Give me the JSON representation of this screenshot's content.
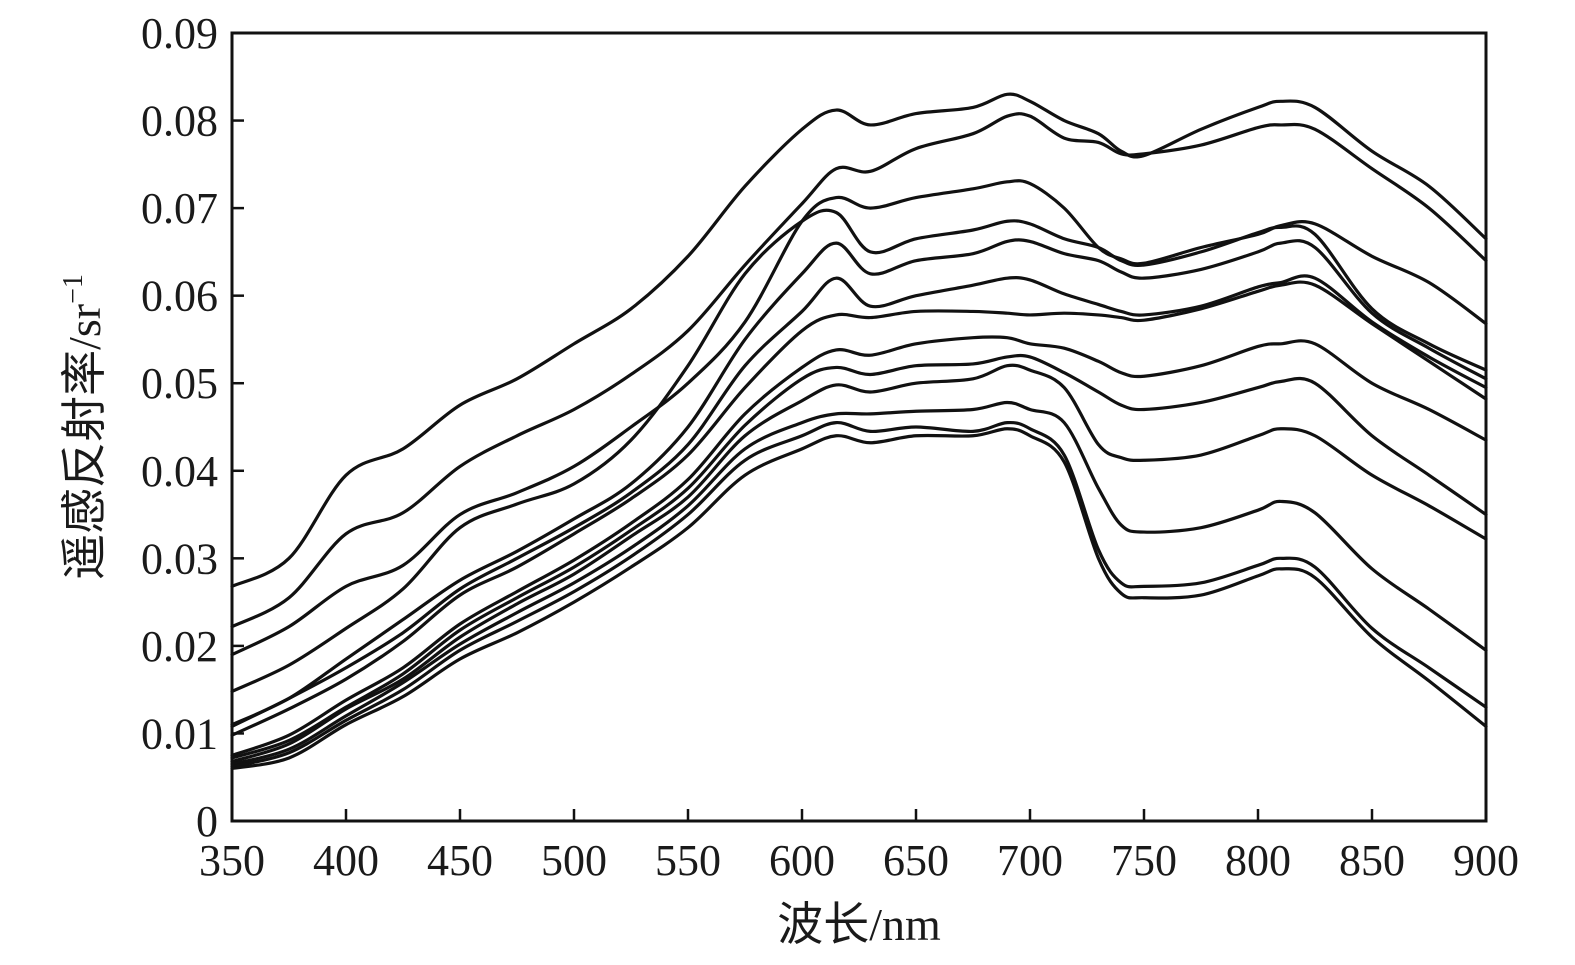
{
  "chart_data": {
    "type": "line",
    "title": "",
    "xlabel": "波长/nm",
    "ylabel": "遥感反射率/sr⁻¹",
    "ylabel_main": "遥感反射率/sr",
    "ylabel_sup": "−1",
    "xlim": [
      350,
      900
    ],
    "ylim": [
      0,
      0.09
    ],
    "xticks": [
      350,
      400,
      450,
      500,
      550,
      600,
      650,
      700,
      750,
      800,
      850,
      900
    ],
    "xtick_labels": [
      "350",
      "400",
      "450",
      "500",
      "550",
      "600",
      "650",
      "700",
      "750",
      "800",
      "850",
      "900"
    ],
    "yticks": [
      0,
      0.01,
      0.02,
      0.03,
      0.04,
      0.05,
      0.06,
      0.07,
      0.08,
      0.09
    ],
    "ytick_labels": [
      "0",
      "0.01",
      "0.02",
      "0.03",
      "0.04",
      "0.05",
      "0.06",
      "0.07",
      "0.08",
      "0.09"
    ],
    "grid": false,
    "legend": "none",
    "line_color": "#111111",
    "x": [
      350,
      375,
      400,
      425,
      450,
      475,
      500,
      525,
      550,
      575,
      600,
      615,
      630,
      650,
      675,
      690,
      700,
      715,
      730,
      740,
      750,
      775,
      800,
      810,
      825,
      850,
      875,
      900
    ],
    "series": [
      {
        "values": [
          0.0268,
          0.03,
          0.0395,
          0.0425,
          0.0475,
          0.0505,
          0.0545,
          0.0585,
          0.0645,
          0.0725,
          0.079,
          0.0812,
          0.0795,
          0.0808,
          0.0815,
          0.083,
          0.0822,
          0.08,
          0.0785,
          0.0765,
          0.076,
          0.079,
          0.0815,
          0.0822,
          0.0815,
          0.0765,
          0.0725,
          0.0665
        ]
      },
      {
        "values": [
          0.0222,
          0.0255,
          0.0328,
          0.0352,
          0.0405,
          0.044,
          0.047,
          0.051,
          0.056,
          0.0635,
          0.0705,
          0.0745,
          0.0742,
          0.0768,
          0.0785,
          0.0805,
          0.0805,
          0.078,
          0.0775,
          0.0762,
          0.0762,
          0.0772,
          0.0792,
          0.0795,
          0.079,
          0.0745,
          0.07,
          0.064
        ]
      },
      {
        "values": [
          0.019,
          0.0222,
          0.0268,
          0.0292,
          0.035,
          0.0375,
          0.0405,
          0.045,
          0.05,
          0.057,
          0.0685,
          0.0712,
          0.07,
          0.0712,
          0.0722,
          0.073,
          0.0728,
          0.07,
          0.0655,
          0.0642,
          0.0637,
          0.0655,
          0.067,
          0.068,
          0.0682,
          0.0645,
          0.0615,
          0.0568
        ]
      },
      {
        "values": [
          0.0148,
          0.0178,
          0.022,
          0.0265,
          0.0335,
          0.0362,
          0.0385,
          0.0435,
          0.052,
          0.0625,
          0.0685,
          0.0695,
          0.065,
          0.0665,
          0.0675,
          0.0685,
          0.0682,
          0.0665,
          0.0655,
          0.064,
          0.0635,
          0.065,
          0.0672,
          0.0678,
          0.067,
          0.0585,
          0.0545,
          0.0515
        ]
      },
      {
        "values": [
          0.011,
          0.014,
          0.0185,
          0.023,
          0.0275,
          0.0308,
          0.0345,
          0.0385,
          0.045,
          0.055,
          0.0625,
          0.066,
          0.0625,
          0.064,
          0.0648,
          0.0662,
          0.0662,
          0.0648,
          0.064,
          0.0627,
          0.062,
          0.063,
          0.065,
          0.066,
          0.0655,
          0.058,
          0.054,
          0.0505
        ]
      },
      {
        "values": [
          0.0108,
          0.014,
          0.0175,
          0.0215,
          0.0265,
          0.03,
          0.0335,
          0.0375,
          0.043,
          0.052,
          0.0582,
          0.062,
          0.0588,
          0.06,
          0.0612,
          0.062,
          0.0618,
          0.0602,
          0.059,
          0.0582,
          0.0578,
          0.0588,
          0.061,
          0.0615,
          0.062,
          0.057,
          0.053,
          0.0495
        ]
      },
      {
        "values": [
          0.0098,
          0.0128,
          0.0162,
          0.0205,
          0.0258,
          0.029,
          0.0328,
          0.0368,
          0.0418,
          0.0495,
          0.056,
          0.0578,
          0.0575,
          0.0582,
          0.0582,
          0.058,
          0.0578,
          0.058,
          0.0578,
          0.0575,
          0.0572,
          0.0585,
          0.0605,
          0.0612,
          0.0612,
          0.0568,
          0.0525,
          0.0482
        ]
      },
      {
        "values": [
          0.0075,
          0.0098,
          0.0138,
          0.0175,
          0.0225,
          0.0262,
          0.0298,
          0.034,
          0.039,
          0.0465,
          0.0518,
          0.0538,
          0.0532,
          0.0545,
          0.0552,
          0.0552,
          0.0545,
          0.054,
          0.0525,
          0.0512,
          0.0508,
          0.052,
          0.0542,
          0.0545,
          0.0545,
          0.05,
          0.047,
          0.0435
        ]
      },
      {
        "values": [
          0.0072,
          0.0092,
          0.013,
          0.0168,
          0.0218,
          0.0255,
          0.029,
          0.0332,
          0.038,
          0.0452,
          0.0505,
          0.0518,
          0.051,
          0.052,
          0.0522,
          0.053,
          0.053,
          0.0512,
          0.049,
          0.0475,
          0.047,
          0.0478,
          0.0495,
          0.0502,
          0.05,
          0.044,
          0.0395,
          0.035
        ]
      },
      {
        "values": [
          0.0068,
          0.0088,
          0.0128,
          0.0162,
          0.021,
          0.0248,
          0.0282,
          0.0325,
          0.037,
          0.044,
          0.048,
          0.0498,
          0.049,
          0.05,
          0.0505,
          0.052,
          0.0515,
          0.0495,
          0.043,
          0.0415,
          0.0412,
          0.0418,
          0.044,
          0.0448,
          0.044,
          0.0395,
          0.036,
          0.0322
        ]
      },
      {
        "values": [
          0.0065,
          0.0082,
          0.012,
          0.0158,
          0.0202,
          0.0238,
          0.0272,
          0.0312,
          0.036,
          0.0425,
          0.0455,
          0.0465,
          0.0465,
          0.0468,
          0.047,
          0.0478,
          0.047,
          0.0455,
          0.038,
          0.0338,
          0.033,
          0.0335,
          0.0355,
          0.0365,
          0.0352,
          0.0288,
          0.0242,
          0.0195
        ]
      },
      {
        "values": [
          0.0062,
          0.0078,
          0.0115,
          0.015,
          0.0195,
          0.0228,
          0.0262,
          0.0302,
          0.035,
          0.0412,
          0.044,
          0.0455,
          0.0445,
          0.045,
          0.0445,
          0.0455,
          0.0448,
          0.0418,
          0.031,
          0.0272,
          0.0268,
          0.0272,
          0.0292,
          0.03,
          0.029,
          0.022,
          0.0175,
          0.013
        ]
      },
      {
        "values": [
          0.006,
          0.0072,
          0.011,
          0.0142,
          0.0185,
          0.0215,
          0.025,
          0.029,
          0.0335,
          0.0395,
          0.0425,
          0.044,
          0.0432,
          0.044,
          0.044,
          0.0448,
          0.044,
          0.041,
          0.03,
          0.026,
          0.0255,
          0.0258,
          0.028,
          0.0288,
          0.0278,
          0.021,
          0.016,
          0.0108
        ]
      }
    ]
  }
}
